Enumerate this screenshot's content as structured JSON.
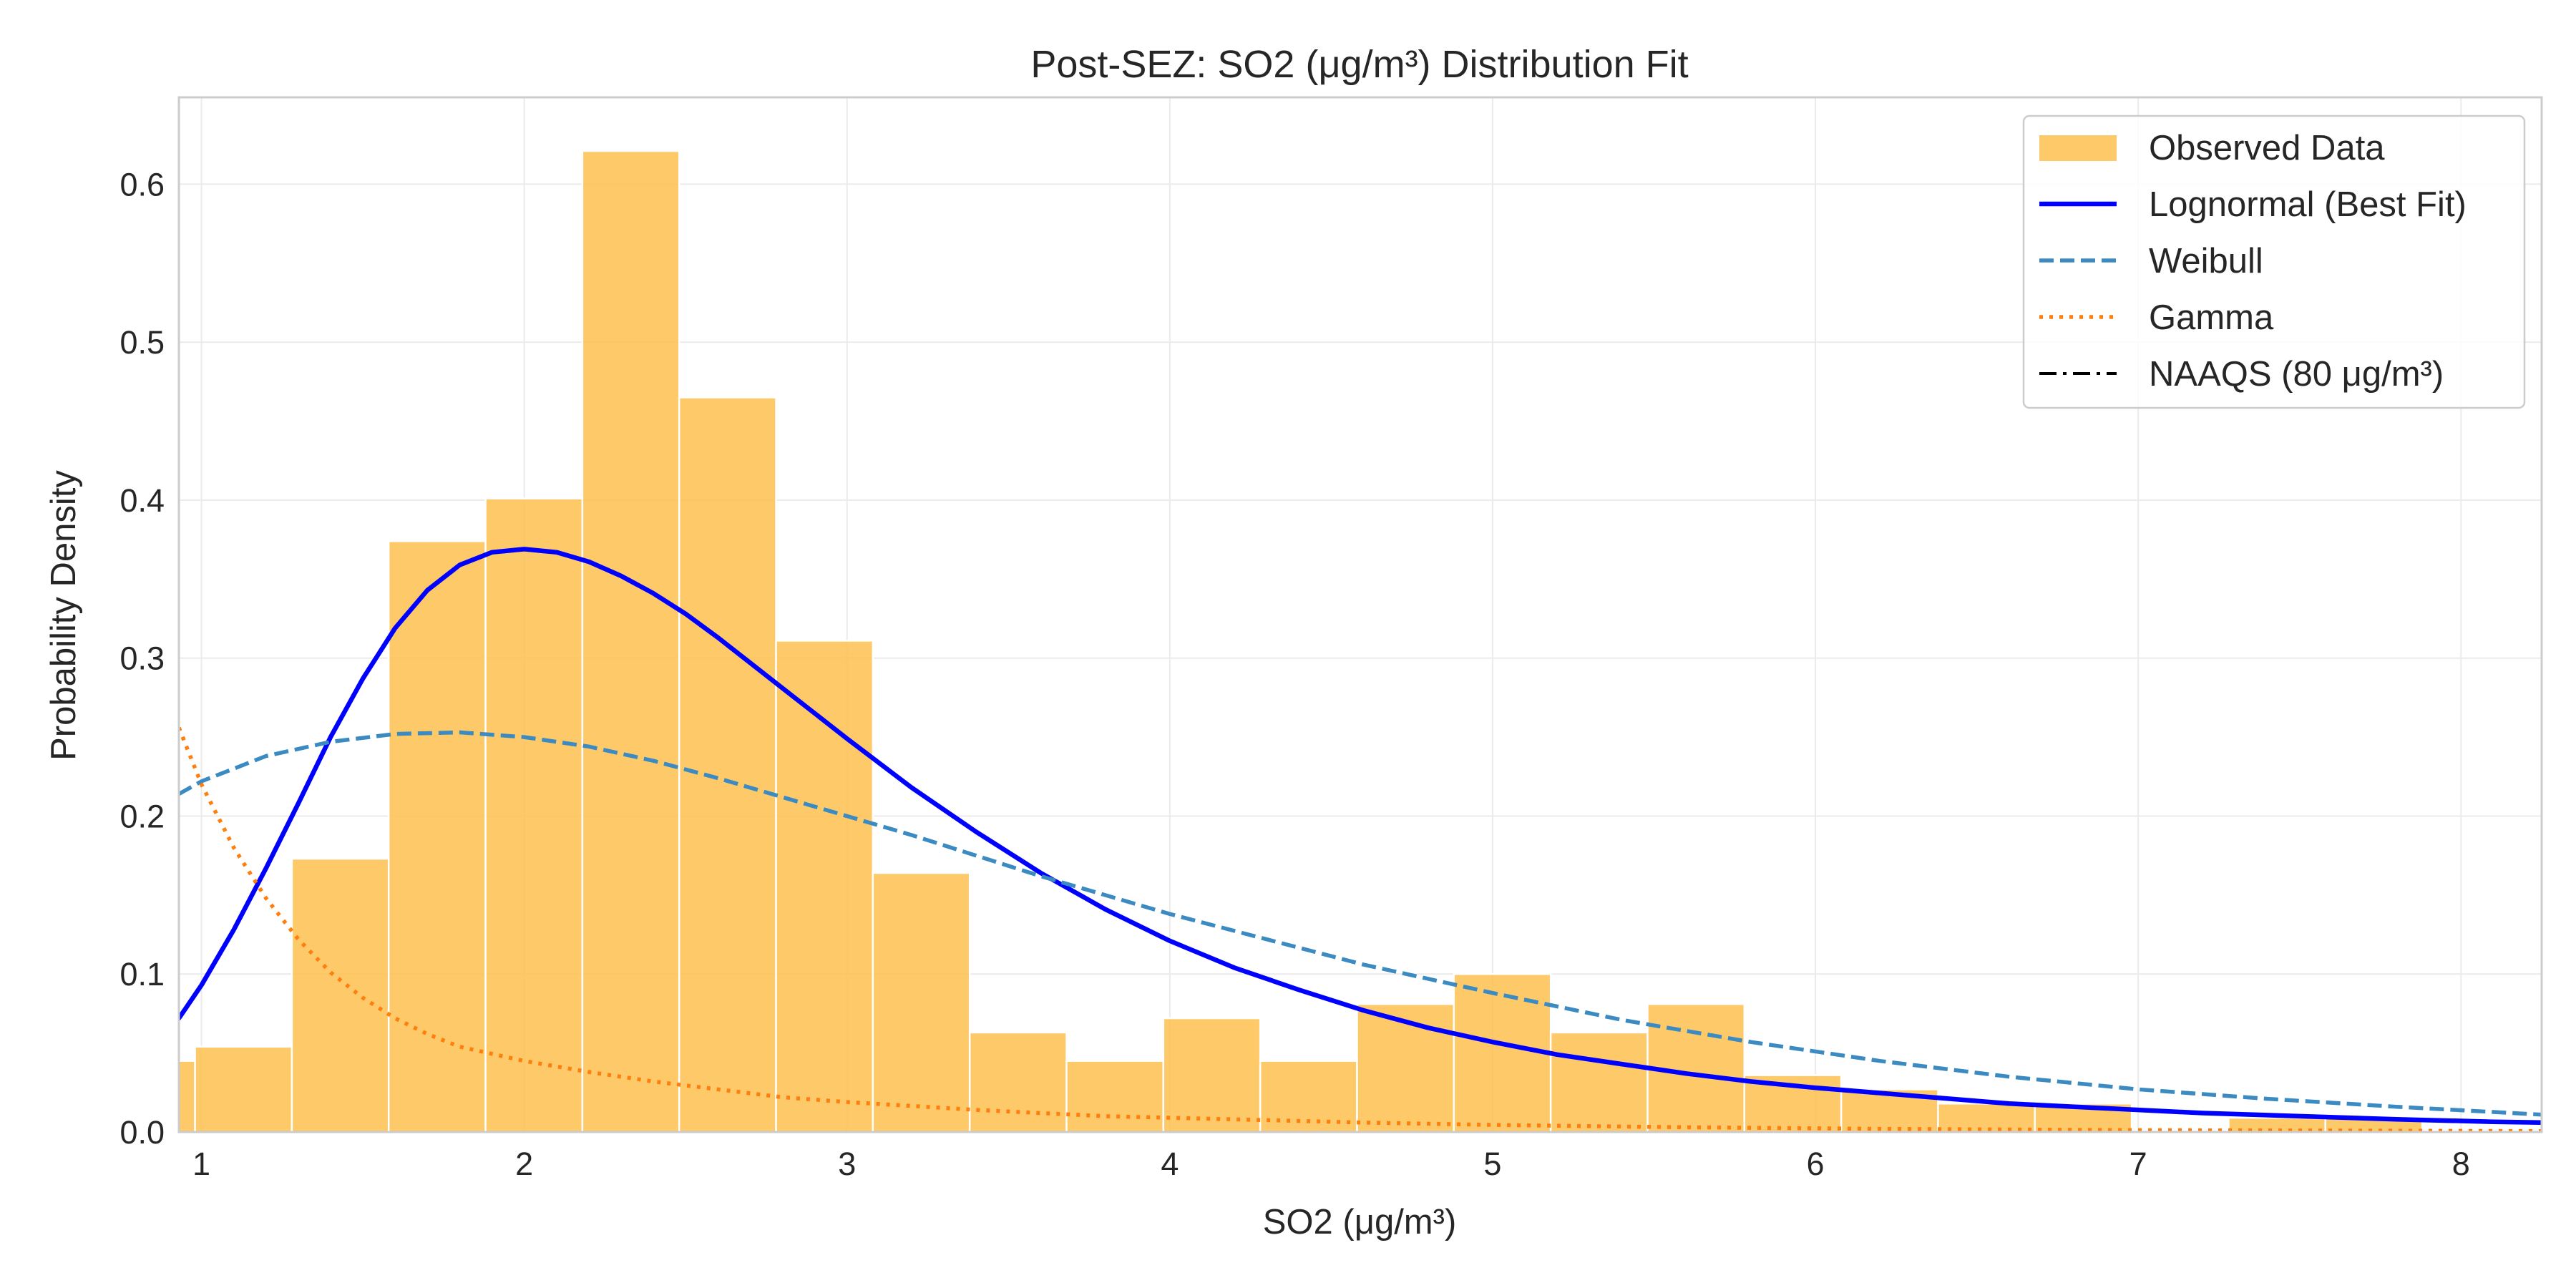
{
  "chart_data": {
    "type": "bar",
    "title": "Post-SEZ: SO2 (μg/m³) Distribution Fit",
    "xlabel": "SO2 (μg/m³)",
    "ylabel": "Probability Density",
    "xlim": [
      0.93,
      8.25
    ],
    "ylim": [
      0,
      0.655
    ],
    "xticks": [
      1,
      2,
      3,
      4,
      5,
      6,
      7,
      8
    ],
    "yticks": [
      0.0,
      0.1,
      0.2,
      0.3,
      0.4,
      0.5,
      0.6
    ],
    "grid": true,
    "legend_position": "top-right",
    "colors": {
      "histogram": "#FDBF4F",
      "histogram_edge": "#ffffff",
      "lognormal": "#0000FF",
      "weibull": "#3B8BC2",
      "gamma": "#FF7F0E",
      "naaqs": "#000000",
      "grid": "#EBEBEB",
      "spine": "#CCCCCC"
    },
    "histogram": {
      "name": "Observed Data",
      "bin_edges": [
        0.68,
        0.98,
        1.28,
        1.58,
        1.88,
        2.18,
        2.48,
        2.78,
        3.08,
        3.38,
        3.68,
        3.98,
        4.28,
        4.58,
        4.88,
        5.18,
        5.48,
        5.78,
        6.08,
        6.38,
        6.68,
        6.98,
        7.28,
        7.58,
        7.88,
        8.18
      ],
      "densities": [
        0.045,
        0.054,
        0.173,
        0.374,
        0.401,
        0.621,
        0.465,
        0.311,
        0.164,
        0.063,
        0.045,
        0.072,
        0.045,
        0.081,
        0.1,
        0.063,
        0.081,
        0.036,
        0.027,
        0.018,
        0.018,
        0.0,
        0.009,
        0.009,
        0.0
      ]
    },
    "series": [
      {
        "name": "Lognormal (Best Fit)",
        "style": "solid",
        "x": [
          0.93,
          1.0,
          1.1,
          1.2,
          1.3,
          1.4,
          1.5,
          1.6,
          1.7,
          1.8,
          1.9,
          2.0,
          2.1,
          2.2,
          2.3,
          2.4,
          2.5,
          2.6,
          2.7,
          2.8,
          2.9,
          3.0,
          3.2,
          3.4,
          3.6,
          3.8,
          4.0,
          4.2,
          4.4,
          4.6,
          4.8,
          5.0,
          5.2,
          5.4,
          5.6,
          5.8,
          6.0,
          6.3,
          6.6,
          6.9,
          7.2,
          7.5,
          7.8,
          8.1,
          8.25
        ],
        "y": [
          0.072,
          0.093,
          0.128,
          0.167,
          0.208,
          0.25,
          0.287,
          0.319,
          0.343,
          0.359,
          0.367,
          0.369,
          0.367,
          0.361,
          0.352,
          0.341,
          0.328,
          0.313,
          0.297,
          0.281,
          0.265,
          0.249,
          0.218,
          0.19,
          0.164,
          0.141,
          0.121,
          0.104,
          0.09,
          0.077,
          0.066,
          0.057,
          0.049,
          0.043,
          0.037,
          0.032,
          0.028,
          0.023,
          0.018,
          0.015,
          0.012,
          0.01,
          0.008,
          0.0065,
          0.006
        ]
      },
      {
        "name": "Weibull",
        "style": "dashed",
        "x": [
          0.93,
          1.0,
          1.2,
          1.4,
          1.6,
          1.8,
          2.0,
          2.2,
          2.4,
          2.6,
          2.8,
          3.0,
          3.2,
          3.4,
          3.6,
          3.8,
          4.0,
          4.3,
          4.6,
          5.0,
          5.4,
          5.8,
          6.2,
          6.6,
          7.0,
          7.4,
          7.8,
          8.25
        ],
        "y": [
          0.214,
          0.222,
          0.238,
          0.247,
          0.252,
          0.253,
          0.25,
          0.244,
          0.235,
          0.224,
          0.212,
          0.2,
          0.188,
          0.175,
          0.162,
          0.15,
          0.138,
          0.122,
          0.106,
          0.088,
          0.071,
          0.057,
          0.045,
          0.035,
          0.027,
          0.021,
          0.016,
          0.011
        ]
      },
      {
        "name": "Gamma",
        "style": "dotted",
        "x": [
          0.93,
          1.0,
          1.1,
          1.2,
          1.3,
          1.4,
          1.5,
          1.6,
          1.7,
          1.8,
          2.0,
          2.2,
          2.4,
          2.6,
          2.8,
          3.0,
          3.4,
          3.8,
          4.2,
          4.6,
          5.0,
          5.6,
          6.2,
          7.0,
          7.8,
          8.25
        ],
        "y": [
          0.256,
          0.22,
          0.18,
          0.148,
          0.122,
          0.101,
          0.085,
          0.072,
          0.062,
          0.054,
          0.045,
          0.038,
          0.032,
          0.027,
          0.022,
          0.019,
          0.014,
          0.01,
          0.008,
          0.006,
          0.0045,
          0.003,
          0.002,
          0.0012,
          0.0008,
          0.0006
        ]
      },
      {
        "name": "NAAQS (80 μg/m³)",
        "style": "dashdot",
        "x": [],
        "y": []
      }
    ]
  }
}
